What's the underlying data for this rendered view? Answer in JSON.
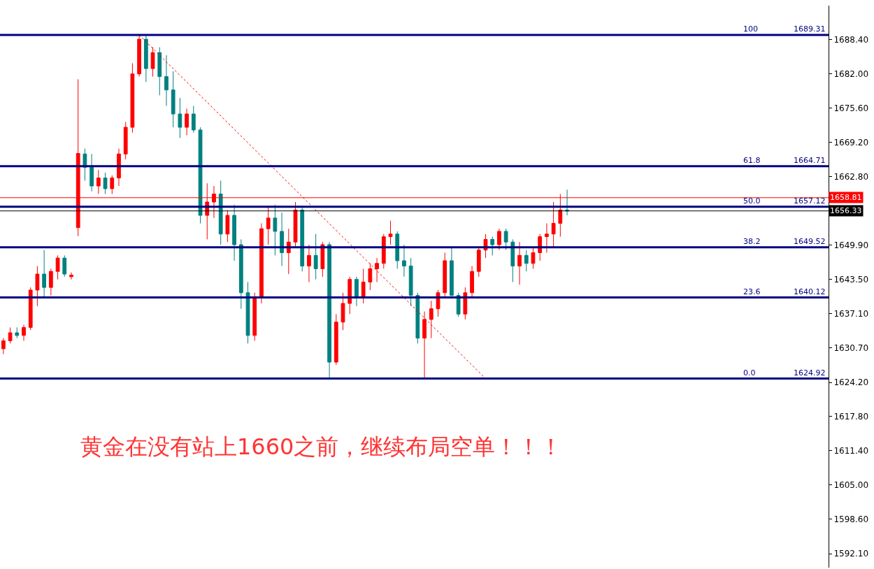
{
  "chart_data": {
    "type": "candlestick",
    "categories": [
      null,
      null,
      null,
      null,
      null,
      null,
      null,
      null,
      null,
      null,
      null,
      null,
      null,
      null,
      null,
      null,
      null,
      null,
      null,
      null,
      null,
      null,
      null,
      null,
      null,
      null,
      null,
      null,
      null,
      null,
      null,
      null,
      null,
      null,
      null,
      null,
      null,
      null,
      null,
      null,
      null,
      null,
      null,
      null,
      null,
      null,
      null,
      null,
      null,
      null,
      null,
      null,
      null,
      null,
      null,
      null,
      null,
      null,
      null,
      null,
      null,
      null,
      null,
      null,
      null,
      null,
      null,
      null,
      null,
      null,
      null,
      null,
      null,
      null,
      null,
      null,
      null,
      null,
      null,
      null,
      null,
      null,
      null,
      null,
      null,
      null,
      null,
      null,
      null,
      null,
      null,
      null,
      null,
      null,
      null,
      null,
      null,
      null,
      null,
      null,
      null,
      null,
      null,
      null,
      null,
      null,
      null,
      null,
      null,
      null,
      null,
      null,
      null,
      null,
      null,
      null,
      null,
      null,
      null,
      null,
      null,
      null
    ],
    "ohlc": [
      [
        1630.5,
        1632.5,
        1629.5,
        1632.0
      ],
      [
        1632.0,
        1634.5,
        1631.5,
        1633.5
      ],
      [
        1633.5,
        1634.5,
        1632.5,
        1633.0
      ],
      [
        1633.0,
        1635.0,
        1632.0,
        1634.5
      ],
      [
        1634.5,
        1642.0,
        1634.0,
        1641.5
      ],
      [
        1641.5,
        1646.0,
        1638.5,
        1644.5
      ],
      [
        1644.5,
        1649.0,
        1640.0,
        1642.0
      ],
      [
        1642.0,
        1645.5,
        1640.5,
        1645.0
      ],
      [
        1645.0,
        1648.0,
        1643.5,
        1647.5
      ],
      [
        1647.5,
        1648.0,
        1644.0,
        1644.5
      ],
      [
        1644.0,
        1644.8,
        1643.5,
        1644.3
      ],
      [
        1653.2,
        1681.0,
        1651.6,
        1667.1
      ],
      [
        1667.0,
        1668.0,
        1662.0,
        1664.5
      ],
      [
        1664.5,
        1667.0,
        1660.0,
        1661.0
      ],
      [
        1661.0,
        1664.0,
        1659.5,
        1662.5
      ],
      [
        1662.5,
        1663.5,
        1659.5,
        1660.5
      ],
      [
        1660.5,
        1663.0,
        1659.5,
        1662.5
      ],
      [
        1662.5,
        1668.0,
        1661.0,
        1667.0
      ],
      [
        1667.0,
        1673.0,
        1666.0,
        1672.0
      ],
      [
        1672.0,
        1684.0,
        1671.0,
        1682.0
      ],
      [
        1682.0,
        1689.3,
        1681.5,
        1688.5
      ],
      [
        1688.5,
        1689.3,
        1680.5,
        1683.0
      ],
      [
        1683.0,
        1687.0,
        1681.5,
        1686.0
      ],
      [
        1686.0,
        1687.0,
        1678.0,
        1681.5
      ],
      [
        1681.5,
        1685.5,
        1676.0,
        1679.0
      ],
      [
        1679.0,
        1682.5,
        1672.0,
        1674.5
      ],
      [
        1674.5,
        1677.5,
        1670.0,
        1672.0
      ],
      [
        1672.0,
        1675.5,
        1670.5,
        1674.5
      ],
      [
        1674.5,
        1676.0,
        1671.0,
        1671.5
      ],
      [
        1671.5,
        1672.0,
        1654.0,
        1655.5
      ],
      [
        1655.5,
        1661.5,
        1651.0,
        1658.0
      ],
      [
        1658.0,
        1661.0,
        1655.0,
        1659.5
      ],
      [
        1659.5,
        1662.0,
        1650.0,
        1652.0
      ],
      [
        1652.0,
        1656.5,
        1650.5,
        1655.5
      ],
      [
        1655.5,
        1657.5,
        1647.0,
        1650.0
      ],
      [
        1650.0,
        1651.0,
        1638.0,
        1641.0
      ],
      [
        1641.0,
        1643.0,
        1631.5,
        1633.0
      ],
      [
        1633.0,
        1641.0,
        1632.0,
        1640.0
      ],
      [
        1640.0,
        1654.0,
        1639.0,
        1653.0
      ],
      [
        1653.0,
        1657.0,
        1650.0,
        1655.0
      ],
      [
        1655.0,
        1657.5,
        1648.0,
        1652.5
      ],
      [
        1652.5,
        1656.0,
        1646.0,
        1648.5
      ],
      [
        1648.5,
        1653.0,
        1644.5,
        1650.5
      ],
      [
        1650.5,
        1658.0,
        1649.5,
        1656.5
      ],
      [
        1656.5,
        1657.0,
        1645.0,
        1646.0
      ],
      [
        1646.0,
        1650.0,
        1643.0,
        1648.0
      ],
      [
        1648.0,
        1652.0,
        1643.5,
        1645.5
      ],
      [
        1645.5,
        1650.5,
        1644.0,
        1650.0
      ],
      [
        1650.0,
        1650.5,
        1624.9,
        1628.0
      ],
      [
        1628.0,
        1637.0,
        1627.5,
        1635.5
      ],
      [
        1635.5,
        1641.0,
        1634.0,
        1639.0
      ],
      [
        1639.0,
        1644.0,
        1637.0,
        1643.5
      ],
      [
        1643.5,
        1644.0,
        1638.5,
        1640.0
      ],
      [
        1640.0,
        1645.5,
        1639.0,
        1643.0
      ],
      [
        1643.0,
        1646.5,
        1641.5,
        1645.5
      ],
      [
        1645.5,
        1647.5,
        1643.0,
        1646.5
      ],
      [
        1646.5,
        1652.0,
        1645.5,
        1651.5
      ],
      [
        1651.5,
        1654.5,
        1650.0,
        1652.0
      ],
      [
        1652.0,
        1652.5,
        1645.5,
        1647.0
      ],
      [
        1647.0,
        1650.0,
        1644.0,
        1646.0
      ],
      [
        1646.0,
        1647.5,
        1638.5,
        1640.5
      ],
      [
        1640.5,
        1641.0,
        1631.5,
        1632.5
      ],
      [
        1632.5,
        1637.5,
        1624.9,
        1636.0
      ],
      [
        1636.0,
        1639.5,
        1632.5,
        1638.0
      ],
      [
        1638.0,
        1641.5,
        1636.5,
        1641.0
      ],
      [
        1641.0,
        1648.5,
        1640.0,
        1647.0
      ],
      [
        1647.0,
        1649.5,
        1640.0,
        1640.5
      ],
      [
        1640.5,
        1641.0,
        1636.5,
        1637.0
      ],
      [
        1637.0,
        1642.0,
        1636.0,
        1641.0
      ],
      [
        1641.0,
        1646.0,
        1640.0,
        1645.0
      ],
      [
        1645.0,
        1649.5,
        1644.0,
        1649.0
      ],
      [
        1649.0,
        1652.0,
        1647.5,
        1651.0
      ],
      [
        1651.0,
        1651.5,
        1648.0,
        1650.0
      ],
      [
        1650.0,
        1653.0,
        1649.0,
        1652.5
      ],
      [
        1652.5,
        1653.0,
        1649.0,
        1650.5
      ],
      [
        1650.5,
        1651.0,
        1643.0,
        1646.0
      ],
      [
        1646.0,
        1650.5,
        1642.5,
        1648.0
      ],
      [
        1648.0,
        1649.0,
        1645.0,
        1646.5
      ],
      [
        1646.5,
        1649.5,
        1645.5,
        1648.5
      ],
      [
        1648.5,
        1652.0,
        1647.0,
        1651.5
      ],
      [
        1651.5,
        1654.0,
        1648.5,
        1652.0
      ],
      [
        1652.0,
        1658.0,
        1649.5,
        1654.0
      ],
      [
        1654.0,
        1659.5,
        1651.5,
        1656.5
      ],
      [
        1656.5,
        1660.3,
        1655.5,
        1656.3
      ],
      null,
      null,
      null,
      null,
      null,
      null,
      null,
      null,
      null,
      null,
      null,
      null,
      null,
      null,
      null,
      null,
      null,
      null,
      null,
      null,
      null,
      null,
      null,
      null,
      null,
      null,
      null,
      null,
      null,
      null,
      null,
      null,
      null,
      null,
      null,
      null,
      null,
      null
    ],
    "series": [
      {
        "type": "line",
        "values": [
          null,
          null,
          null,
          null,
          null,
          null,
          null,
          null,
          null,
          null,
          null,
          null,
          null,
          null,
          null,
          null,
          null,
          null,
          null,
          null,
          1689.3,
          null,
          null,
          null,
          null,
          null,
          null,
          null,
          null,
          null,
          null,
          null,
          null,
          null,
          null,
          null,
          null,
          null,
          null,
          null,
          null,
          null,
          null,
          null,
          null,
          null,
          null,
          null,
          null,
          null,
          null,
          null,
          null,
          null,
          null,
          null,
          null,
          null,
          null,
          null,
          null,
          null,
          null,
          null,
          null,
          null,
          null,
          null,
          null,
          null,
          null,
          1624.9,
          null,
          null,
          null,
          null,
          null,
          null,
          null,
          null,
          null,
          null,
          null,
          null,
          null,
          null,
          null,
          null,
          null,
          null,
          null,
          null,
          null,
          null,
          null,
          null,
          null,
          null,
          null,
          null,
          null,
          null,
          null,
          null,
          null,
          null,
          null,
          null,
          null,
          null,
          null,
          null,
          null,
          null,
          null,
          null,
          null,
          null,
          null,
          null,
          null,
          null
        ],
        "color": "#ff0000",
        "line_style": "dotted"
      }
    ],
    "ylim": [
      1589.5,
      1694.8
    ],
    "yticks": [
      {
        "value": 1688.4,
        "label": "1688.40"
      },
      {
        "value": 1682.0,
        "label": "1682.00"
      },
      {
        "value": 1675.6,
        "label": "1675.60"
      },
      {
        "value": 1669.2,
        "label": "1669.20"
      },
      {
        "value": 1662.8,
        "label": "1662.80"
      },
      {
        "value": 1649.9,
        "label": "1649.90"
      },
      {
        "value": 1643.5,
        "label": "1643.50"
      },
      {
        "value": 1637.1,
        "label": "1637.10"
      },
      {
        "value": 1630.7,
        "label": "1630.70"
      },
      {
        "value": 1624.2,
        "label": "1624.20"
      },
      {
        "value": 1617.8,
        "label": "1617.80"
      },
      {
        "value": 1611.4,
        "label": "1611.40"
      },
      {
        "value": 1605.0,
        "label": "1605.00"
      },
      {
        "value": 1598.6,
        "label": "1598.60"
      },
      {
        "value": 1592.1,
        "label": "1592.10"
      }
    ],
    "ref_lines": [
      {
        "axis": "y",
        "value": 1689.31,
        "label": "1689.31",
        "color": "#000080"
      },
      {
        "axis": "y",
        "value": 1664.71,
        "label": "1664.71",
        "color": "#000080"
      },
      {
        "axis": "y",
        "value": 1657.12,
        "label": "1657.12",
        "color": "#000080"
      },
      {
        "axis": "y",
        "value": 1649.52,
        "label": "1649.52",
        "color": "#000080"
      },
      {
        "axis": "y",
        "value": 1640.12,
        "label": "1640.12",
        "color": "#000080"
      },
      {
        "axis": "y",
        "value": 1624.92,
        "label": "1624.92",
        "color": "#000080"
      },
      {
        "axis": "y",
        "value": 1658.81,
        "label": "1658.81",
        "color": "#ff0000"
      },
      {
        "axis": "y",
        "value": 1656.33,
        "label": "1656.33",
        "color": "#000000"
      }
    ],
    "annotations": [
      {
        "text": "100",
        "y": 1689.31
      },
      {
        "text": "61.8",
        "y": 1664.71
      },
      {
        "text": "50.0",
        "y": 1657.12
      },
      {
        "text": "38.2",
        "y": 1649.52
      },
      {
        "text": "23.6",
        "y": 1640.12
      },
      {
        "text": "0.0",
        "y": 1624.92
      },
      "黄金在没有站上1660之前，继续布局空单！！！"
    ],
    "tick_labels": "y"
  }
}
